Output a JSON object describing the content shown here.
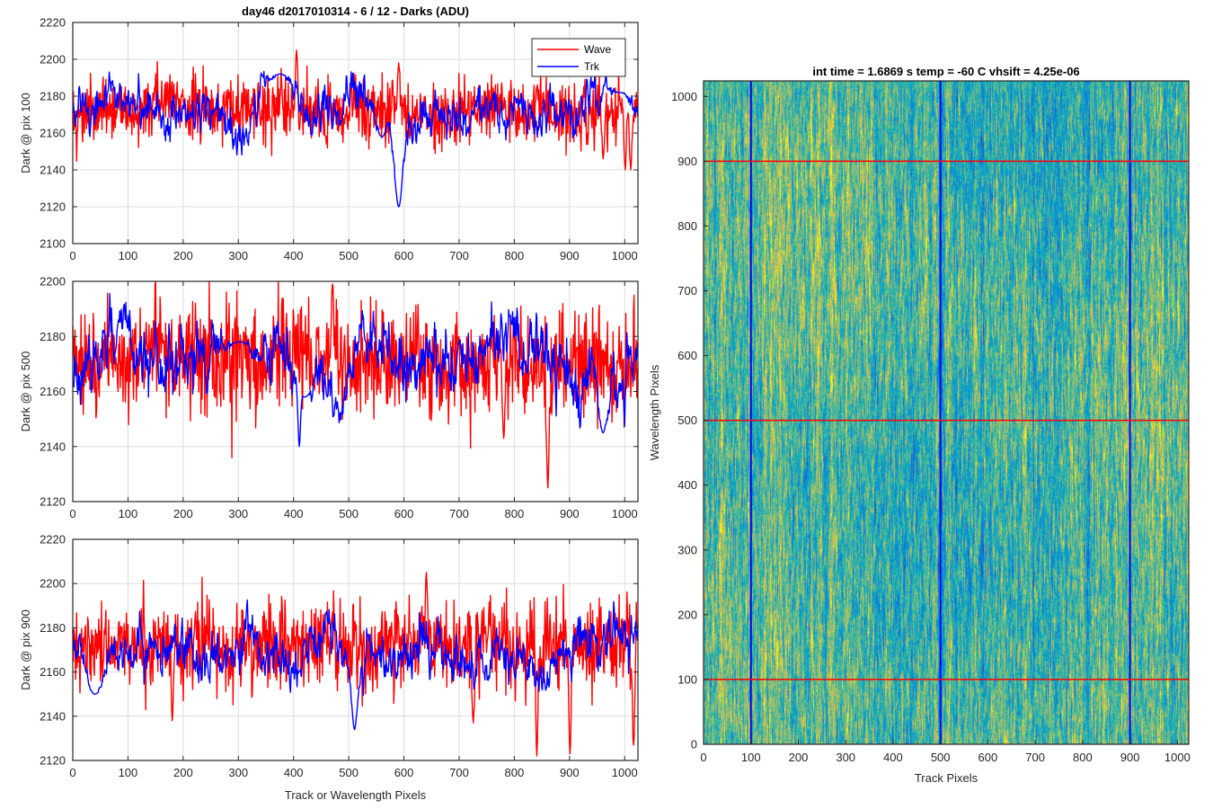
{
  "figure": {
    "background": "#ffffff",
    "line_colors": {
      "wave": "#ff0000",
      "trk": "#0000ff"
    }
  },
  "chart_data": [
    {
      "type": "line",
      "title": "day46 d2017010314 - 6 / 12 - Darks (ADU)",
      "xlabel": "",
      "ylabel": "Dark @ pix 100",
      "xlim": [
        0,
        1024
      ],
      "ylim": [
        2100,
        2220
      ],
      "xticks": [
        0,
        100,
        200,
        300,
        400,
        500,
        600,
        700,
        800,
        900,
        1000
      ],
      "yticks": [
        2100,
        2120,
        2140,
        2160,
        2180,
        2200,
        2220
      ],
      "grid": true,
      "legend": {
        "position": "top-right",
        "entries": [
          "Wave",
          "Trk"
        ]
      },
      "series": [
        {
          "name": "Wave",
          "color": "#ff0000",
          "baseline": 2172,
          "noise": 9,
          "features": [
            [
              405,
              2205,
              3
            ],
            [
              590,
              2198,
              3
            ],
            [
              960,
              2146,
              3
            ],
            [
              1000,
              2140,
              3
            ],
            [
              1010,
              2140,
              3
            ]
          ]
        },
        {
          "name": "Trk",
          "color": "#0000ff",
          "baseline": 2172,
          "noise": 6,
          "features": [
            [
              375,
              2192,
              30
            ],
            [
              560,
              2158,
              18
            ],
            [
              590,
              2120,
              10
            ],
            [
              990,
              2182,
              25
            ]
          ]
        }
      ]
    },
    {
      "type": "line",
      "title": "",
      "xlabel": "",
      "ylabel": "Dark @ pix 500",
      "xlim": [
        0,
        1024
      ],
      "ylim": [
        2120,
        2200
      ],
      "xticks": [
        0,
        100,
        200,
        300,
        400,
        500,
        600,
        700,
        800,
        900,
        1000
      ],
      "yticks": [
        2120,
        2140,
        2160,
        2180,
        2200
      ],
      "grid": true,
      "series": [
        {
          "name": "Wave",
          "color": "#ff0000",
          "baseline": 2170,
          "noise": 10,
          "features": [
            [
              470,
              2199,
              3
            ],
            [
              860,
              2125,
              3
            ],
            [
              780,
              2143,
              3
            ]
          ]
        },
        {
          "name": "Trk",
          "color": "#0000ff",
          "baseline": 2170,
          "noise": 6,
          "features": [
            [
              420,
              2158,
              20
            ],
            [
              410,
              2140,
              3
            ],
            [
              960,
              2145,
              12
            ],
            [
              300,
              2178,
              40
            ]
          ]
        }
      ]
    },
    {
      "type": "line",
      "title": "",
      "xlabel": "Track or Wavelength Pixels",
      "ylabel": "Dark @ pix 900",
      "xlim": [
        0,
        1024
      ],
      "ylim": [
        2120,
        2220
      ],
      "xticks": [
        0,
        100,
        200,
        300,
        400,
        500,
        600,
        700,
        800,
        900,
        1000
      ],
      "yticks": [
        2120,
        2140,
        2160,
        2180,
        2200,
        2220
      ],
      "grid": true,
      "series": [
        {
          "name": "Wave",
          "color": "#ff0000",
          "baseline": 2173,
          "noise": 10,
          "features": [
            [
              640,
              2205,
              3
            ],
            [
              840,
              2122,
              3
            ],
            [
              900,
              2123,
              3
            ],
            [
              1015,
              2127,
              3
            ],
            [
              180,
              2138,
              3
            ],
            [
              725,
              2137,
              3
            ]
          ]
        },
        {
          "name": "Trk",
          "color": "#0000ff",
          "baseline": 2170,
          "noise": 6,
          "features": [
            [
              40,
              2150,
              25
            ],
            [
              510,
              2140,
              12
            ],
            [
              510,
              2134,
              3
            ]
          ]
        }
      ]
    },
    {
      "type": "heatmap",
      "title": "int time = 1.6869 s    temp = -60 C    vhsift = 4.25e-06",
      "xlabel": "Track Pixels",
      "ylabel": "Wavelength Pixels",
      "xlim": [
        0,
        1024
      ],
      "ylim": [
        0,
        1024
      ],
      "xticks": [
        0,
        100,
        200,
        300,
        400,
        500,
        600,
        700,
        800,
        900,
        1000
      ],
      "yticks": [
        0,
        100,
        200,
        300,
        400,
        500,
        600,
        700,
        800,
        900,
        1000
      ],
      "colormap": "parula",
      "value_range": [
        2150,
        2190
      ],
      "horizontal_lines": {
        "color": "#ff0000",
        "y": [
          100,
          500,
          900
        ]
      },
      "vertical_lines": {
        "color": "#0000ff",
        "x": [
          100,
          500,
          900
        ]
      }
    }
  ]
}
